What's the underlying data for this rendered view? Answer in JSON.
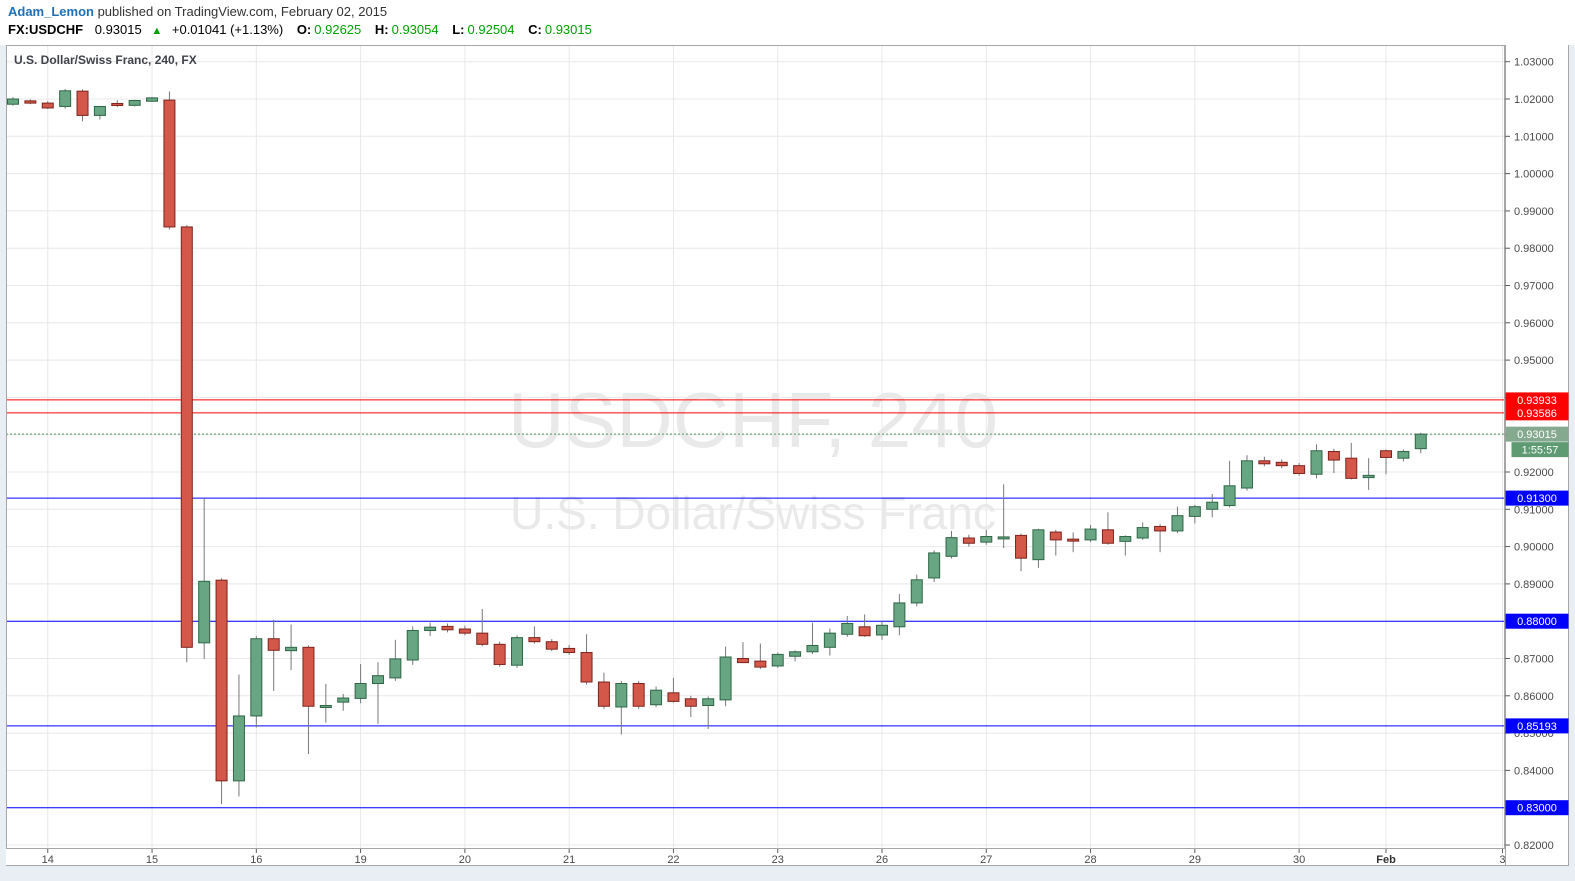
{
  "header": {
    "author": "Adam_Lemon",
    "published": " published on TradingView.com, February 02, 2015"
  },
  "symbol_bar": {
    "symbol": "FX:USDCHF",
    "last": "0.93015",
    "arrow": "▲",
    "change": "+0.01041 (+1.13%)",
    "fields": [
      {
        "label": "O:",
        "value": "0.92625"
      },
      {
        "label": "H:",
        "value": "0.93054"
      },
      {
        "label": "L:",
        "value": "0.92504"
      },
      {
        "label": "C:",
        "value": "0.93015"
      }
    ]
  },
  "colors": {
    "up_fill": "#67a583",
    "up_border": "#2f6746",
    "down_fill": "#d4584a",
    "down_border": "#7c241c",
    "wick": "#75787d",
    "grid": "#e8e8e8",
    "border": "#a6a6a6",
    "axis_text": "#4a4a4a",
    "tick": "#5a5a5a",
    "line_red": "#ff0000",
    "line_blue": "#0000ff",
    "last_price_line": "#4c9a68",
    "badge_red": "#ff0000",
    "badge_blue": "#0000ff",
    "badge_last": "#84a98f",
    "badge_countdown": "#5e9a72",
    "watermark": "#e9e9e9",
    "title": "#40424a",
    "link_blue": "#1d70b8",
    "value_green": "#00a000"
  },
  "chart_data": {
    "type": "candlestick",
    "title": "U.S. Dollar/Swiss Franc, 240, FX",
    "watermark": [
      "USDCHF, 240",
      "U.S. Dollar/Swiss Franc"
    ],
    "countdown_label": "1:55:57",
    "y_axis": {
      "min": 0.82,
      "max": 1.03,
      "step": 0.01
    },
    "y_ticks": [
      "1.03000",
      "1.02000",
      "1.01000",
      "1.00000",
      "0.99000",
      "0.98000",
      "0.97000",
      "0.96000",
      "0.95000",
      "0.94000",
      "0.93000",
      "0.92000",
      "0.91000",
      "0.90000",
      "0.89000",
      "0.88000",
      "0.87000",
      "0.86000",
      "0.85000",
      "0.84000",
      "0.83000",
      "0.82000"
    ],
    "x_labels": [
      {
        "text": "14",
        "i": 2
      },
      {
        "text": "15",
        "i": 8
      },
      {
        "text": "16",
        "i": 14
      },
      {
        "text": "19",
        "i": 20
      },
      {
        "text": "20",
        "i": 26
      },
      {
        "text": "21",
        "i": 32
      },
      {
        "text": "22",
        "i": 38
      },
      {
        "text": "23",
        "i": 44
      },
      {
        "text": "26",
        "i": 50
      },
      {
        "text": "27",
        "i": 56
      },
      {
        "text": "28",
        "i": 62
      },
      {
        "text": "29",
        "i": 68
      },
      {
        "text": "30",
        "i": 74
      },
      {
        "text": "Feb",
        "i": 79,
        "bold": true
      },
      {
        "text": "3",
        "i": 85.7
      }
    ],
    "price_lines": [
      {
        "price": 0.93933,
        "label": "0.93933",
        "type": "resistance",
        "color_key": "red"
      },
      {
        "price": 0.93586,
        "label": "0.93586",
        "type": "resistance",
        "color_key": "red"
      },
      {
        "price": 0.93015,
        "label": "0.93015",
        "type": "last_price",
        "color_key": "green_dashed"
      },
      {
        "price": 0.913,
        "label": "0.91300",
        "type": "support",
        "color_key": "blue"
      },
      {
        "price": 0.88,
        "label": "0.88000",
        "type": "support",
        "color_key": "blue"
      },
      {
        "price": 0.85193,
        "label": "0.85193",
        "type": "support",
        "color_key": "blue"
      },
      {
        "price": 0.83,
        "label": "0.83000",
        "type": "support",
        "color_key": "blue"
      }
    ],
    "ohlc": [
      [
        1.0186,
        1.0205,
        1.0182,
        1.02
      ],
      [
        1.0195,
        1.0199,
        1.0186,
        1.0189
      ],
      [
        1.0189,
        1.0194,
        1.0173,
        1.0176
      ],
      [
        1.018,
        1.0227,
        1.0174,
        1.0222
      ],
      [
        1.0221,
        1.0226,
        1.014,
        1.0156
      ],
      [
        1.0156,
        1.0181,
        1.0145,
        1.018
      ],
      [
        1.0188,
        1.0197,
        1.0178,
        1.0185
      ],
      [
        1.0183,
        1.0198,
        1.018,
        1.0196
      ],
      [
        1.0194,
        1.0205,
        1.0192,
        1.0203
      ],
      [
        1.0197,
        1.022,
        0.985,
        0.9857
      ],
      [
        0.9857,
        0.9862,
        0.869,
        0.873
      ],
      [
        0.8742,
        0.913,
        0.8699,
        0.8907
      ],
      [
        0.891,
        0.8915,
        0.831,
        0.8372
      ],
      [
        0.8372,
        0.8657,
        0.833,
        0.8546
      ],
      [
        0.8546,
        0.876,
        0.8515,
        0.8753
      ],
      [
        0.8753,
        0.8804,
        0.8613,
        0.8722
      ],
      [
        0.8721,
        0.8791,
        0.8669,
        0.873
      ],
      [
        0.873,
        0.8735,
        0.8444,
        0.8572
      ],
      [
        0.8572,
        0.8632,
        0.8528,
        0.8574
      ],
      [
        0.8583,
        0.8605,
        0.856,
        0.8594
      ],
      [
        0.8593,
        0.8685,
        0.858,
        0.8633
      ],
      [
        0.8633,
        0.869,
        0.8525,
        0.8654
      ],
      [
        0.8648,
        0.875,
        0.864,
        0.8699
      ],
      [
        0.8696,
        0.8786,
        0.8683,
        0.8775
      ],
      [
        0.8775,
        0.8796,
        0.876,
        0.8784
      ],
      [
        0.8786,
        0.8794,
        0.877,
        0.8777
      ],
      [
        0.8779,
        0.8788,
        0.8762,
        0.8768
      ],
      [
        0.8768,
        0.8833,
        0.8733,
        0.8738
      ],
      [
        0.8738,
        0.8745,
        0.8678,
        0.8684
      ],
      [
        0.8682,
        0.8762,
        0.8675,
        0.8756
      ],
      [
        0.8756,
        0.8786,
        0.874,
        0.8745
      ],
      [
        0.8745,
        0.8752,
        0.872,
        0.8725
      ],
      [
        0.8727,
        0.8736,
        0.871,
        0.8716
      ],
      [
        0.8716,
        0.8765,
        0.863,
        0.8637
      ],
      [
        0.8637,
        0.8662,
        0.8565,
        0.8572
      ],
      [
        0.857,
        0.864,
        0.8496,
        0.8633
      ],
      [
        0.8633,
        0.864,
        0.8565,
        0.8572
      ],
      [
        0.8576,
        0.8625,
        0.857,
        0.8615
      ],
      [
        0.8608,
        0.8648,
        0.8582,
        0.8585
      ],
      [
        0.8592,
        0.86,
        0.8543,
        0.8572
      ],
      [
        0.8574,
        0.8598,
        0.8511,
        0.8592
      ],
      [
        0.8589,
        0.8732,
        0.8572,
        0.8704
      ],
      [
        0.87,
        0.8744,
        0.8688,
        0.8689
      ],
      [
        0.8693,
        0.874,
        0.8672,
        0.8677
      ],
      [
        0.868,
        0.8716,
        0.8675,
        0.8711
      ],
      [
        0.8706,
        0.8722,
        0.8692,
        0.8718
      ],
      [
        0.8718,
        0.8796,
        0.8712,
        0.8735
      ],
      [
        0.873,
        0.878,
        0.8708,
        0.8768
      ],
      [
        0.8765,
        0.8814,
        0.8758,
        0.8794
      ],
      [
        0.8785,
        0.8818,
        0.8758,
        0.8761
      ],
      [
        0.8763,
        0.88,
        0.875,
        0.8789
      ],
      [
        0.8785,
        0.8873,
        0.8762,
        0.8849
      ],
      [
        0.8849,
        0.8925,
        0.884,
        0.8911
      ],
      [
        0.8916,
        0.899,
        0.8905,
        0.8983
      ],
      [
        0.8974,
        0.9042,
        0.8968,
        0.9024
      ],
      [
        0.9023,
        0.9032,
        0.9,
        0.9009
      ],
      [
        0.9012,
        0.9045,
        0.9005,
        0.9027
      ],
      [
        0.9025,
        0.9167,
        0.8996,
        0.9026
      ],
      [
        0.903,
        0.9035,
        0.8934,
        0.8969
      ],
      [
        0.8965,
        0.9048,
        0.8943,
        0.9045
      ],
      [
        0.9039,
        0.9045,
        0.8976,
        0.9018
      ],
      [
        0.902,
        0.9038,
        0.8985,
        0.9016
      ],
      [
        0.9018,
        0.9058,
        0.9012,
        0.9047
      ],
      [
        0.9045,
        0.9092,
        0.9005,
        0.9009
      ],
      [
        0.9014,
        0.903,
        0.8976,
        0.9027
      ],
      [
        0.9023,
        0.9065,
        0.9018,
        0.9051
      ],
      [
        0.9054,
        0.906,
        0.8985,
        0.9042
      ],
      [
        0.9042,
        0.9107,
        0.9036,
        0.9083
      ],
      [
        0.9081,
        0.9112,
        0.9062,
        0.9107
      ],
      [
        0.91,
        0.9141,
        0.9078,
        0.9119
      ],
      [
        0.911,
        0.923,
        0.9105,
        0.9163
      ],
      [
        0.9157,
        0.9245,
        0.915,
        0.923
      ],
      [
        0.923,
        0.9241,
        0.9215,
        0.9222
      ],
      [
        0.9226,
        0.9234,
        0.921,
        0.9217
      ],
      [
        0.9217,
        0.9224,
        0.919,
        0.9196
      ],
      [
        0.9194,
        0.9274,
        0.9183,
        0.9257
      ],
      [
        0.9255,
        0.9262,
        0.9197,
        0.9232
      ],
      [
        0.9237,
        0.9278,
        0.918,
        0.9183
      ],
      [
        0.9185,
        0.9237,
        0.9152,
        0.9191
      ],
      [
        0.9257,
        0.926,
        0.9194,
        0.9239
      ],
      [
        0.9237,
        0.926,
        0.9228,
        0.9255
      ],
      [
        0.92625,
        0.93054,
        0.92504,
        0.93015
      ]
    ]
  }
}
